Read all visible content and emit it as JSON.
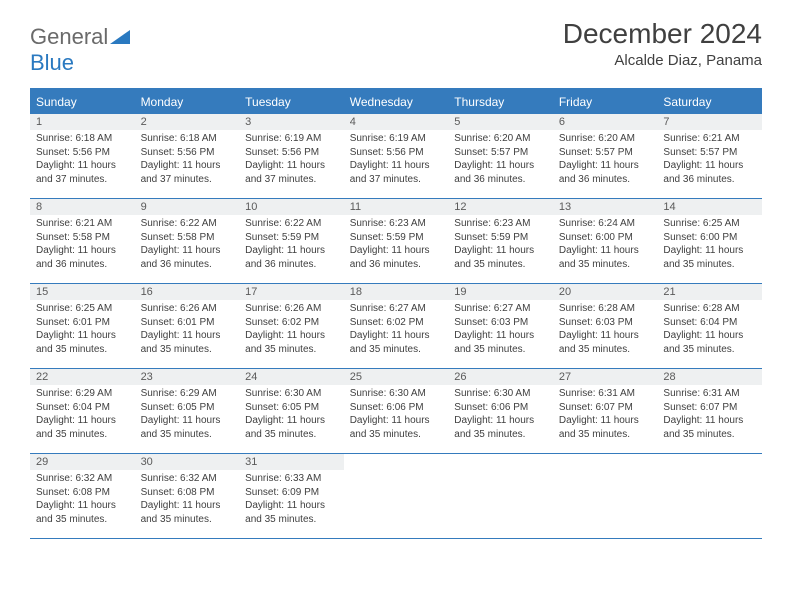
{
  "logo": {
    "text1": "General",
    "text2": "Blue"
  },
  "title": "December 2024",
  "location": "Alcalde Diaz, Panama",
  "day_names": [
    "Sunday",
    "Monday",
    "Tuesday",
    "Wednesday",
    "Thursday",
    "Friday",
    "Saturday"
  ],
  "colors": {
    "header_bg": "#357bbd",
    "header_text": "#ffffff",
    "daynum_bg": "#eef0f1",
    "border": "#357bbd",
    "body_text": "#3f3f3f",
    "logo_gray": "#6a6a6a",
    "logo_blue": "#2a79c0"
  },
  "weeks": [
    [
      {
        "n": "1",
        "sr": "Sunrise: 6:18 AM",
        "ss": "Sunset: 5:56 PM",
        "d1": "Daylight: 11 hours",
        "d2": "and 37 minutes."
      },
      {
        "n": "2",
        "sr": "Sunrise: 6:18 AM",
        "ss": "Sunset: 5:56 PM",
        "d1": "Daylight: 11 hours",
        "d2": "and 37 minutes."
      },
      {
        "n": "3",
        "sr": "Sunrise: 6:19 AM",
        "ss": "Sunset: 5:56 PM",
        "d1": "Daylight: 11 hours",
        "d2": "and 37 minutes."
      },
      {
        "n": "4",
        "sr": "Sunrise: 6:19 AM",
        "ss": "Sunset: 5:56 PM",
        "d1": "Daylight: 11 hours",
        "d2": "and 37 minutes."
      },
      {
        "n": "5",
        "sr": "Sunrise: 6:20 AM",
        "ss": "Sunset: 5:57 PM",
        "d1": "Daylight: 11 hours",
        "d2": "and 36 minutes."
      },
      {
        "n": "6",
        "sr": "Sunrise: 6:20 AM",
        "ss": "Sunset: 5:57 PM",
        "d1": "Daylight: 11 hours",
        "d2": "and 36 minutes."
      },
      {
        "n": "7",
        "sr": "Sunrise: 6:21 AM",
        "ss": "Sunset: 5:57 PM",
        "d1": "Daylight: 11 hours",
        "d2": "and 36 minutes."
      }
    ],
    [
      {
        "n": "8",
        "sr": "Sunrise: 6:21 AM",
        "ss": "Sunset: 5:58 PM",
        "d1": "Daylight: 11 hours",
        "d2": "and 36 minutes."
      },
      {
        "n": "9",
        "sr": "Sunrise: 6:22 AM",
        "ss": "Sunset: 5:58 PM",
        "d1": "Daylight: 11 hours",
        "d2": "and 36 minutes."
      },
      {
        "n": "10",
        "sr": "Sunrise: 6:22 AM",
        "ss": "Sunset: 5:59 PM",
        "d1": "Daylight: 11 hours",
        "d2": "and 36 minutes."
      },
      {
        "n": "11",
        "sr": "Sunrise: 6:23 AM",
        "ss": "Sunset: 5:59 PM",
        "d1": "Daylight: 11 hours",
        "d2": "and 36 minutes."
      },
      {
        "n": "12",
        "sr": "Sunrise: 6:23 AM",
        "ss": "Sunset: 5:59 PM",
        "d1": "Daylight: 11 hours",
        "d2": "and 35 minutes."
      },
      {
        "n": "13",
        "sr": "Sunrise: 6:24 AM",
        "ss": "Sunset: 6:00 PM",
        "d1": "Daylight: 11 hours",
        "d2": "and 35 minutes."
      },
      {
        "n": "14",
        "sr": "Sunrise: 6:25 AM",
        "ss": "Sunset: 6:00 PM",
        "d1": "Daylight: 11 hours",
        "d2": "and 35 minutes."
      }
    ],
    [
      {
        "n": "15",
        "sr": "Sunrise: 6:25 AM",
        "ss": "Sunset: 6:01 PM",
        "d1": "Daylight: 11 hours",
        "d2": "and 35 minutes."
      },
      {
        "n": "16",
        "sr": "Sunrise: 6:26 AM",
        "ss": "Sunset: 6:01 PM",
        "d1": "Daylight: 11 hours",
        "d2": "and 35 minutes."
      },
      {
        "n": "17",
        "sr": "Sunrise: 6:26 AM",
        "ss": "Sunset: 6:02 PM",
        "d1": "Daylight: 11 hours",
        "d2": "and 35 minutes."
      },
      {
        "n": "18",
        "sr": "Sunrise: 6:27 AM",
        "ss": "Sunset: 6:02 PM",
        "d1": "Daylight: 11 hours",
        "d2": "and 35 minutes."
      },
      {
        "n": "19",
        "sr": "Sunrise: 6:27 AM",
        "ss": "Sunset: 6:03 PM",
        "d1": "Daylight: 11 hours",
        "d2": "and 35 minutes."
      },
      {
        "n": "20",
        "sr": "Sunrise: 6:28 AM",
        "ss": "Sunset: 6:03 PM",
        "d1": "Daylight: 11 hours",
        "d2": "and 35 minutes."
      },
      {
        "n": "21",
        "sr": "Sunrise: 6:28 AM",
        "ss": "Sunset: 6:04 PM",
        "d1": "Daylight: 11 hours",
        "d2": "and 35 minutes."
      }
    ],
    [
      {
        "n": "22",
        "sr": "Sunrise: 6:29 AM",
        "ss": "Sunset: 6:04 PM",
        "d1": "Daylight: 11 hours",
        "d2": "and 35 minutes."
      },
      {
        "n": "23",
        "sr": "Sunrise: 6:29 AM",
        "ss": "Sunset: 6:05 PM",
        "d1": "Daylight: 11 hours",
        "d2": "and 35 minutes."
      },
      {
        "n": "24",
        "sr": "Sunrise: 6:30 AM",
        "ss": "Sunset: 6:05 PM",
        "d1": "Daylight: 11 hours",
        "d2": "and 35 minutes."
      },
      {
        "n": "25",
        "sr": "Sunrise: 6:30 AM",
        "ss": "Sunset: 6:06 PM",
        "d1": "Daylight: 11 hours",
        "d2": "and 35 minutes."
      },
      {
        "n": "26",
        "sr": "Sunrise: 6:30 AM",
        "ss": "Sunset: 6:06 PM",
        "d1": "Daylight: 11 hours",
        "d2": "and 35 minutes."
      },
      {
        "n": "27",
        "sr": "Sunrise: 6:31 AM",
        "ss": "Sunset: 6:07 PM",
        "d1": "Daylight: 11 hours",
        "d2": "and 35 minutes."
      },
      {
        "n": "28",
        "sr": "Sunrise: 6:31 AM",
        "ss": "Sunset: 6:07 PM",
        "d1": "Daylight: 11 hours",
        "d2": "and 35 minutes."
      }
    ],
    [
      {
        "n": "29",
        "sr": "Sunrise: 6:32 AM",
        "ss": "Sunset: 6:08 PM",
        "d1": "Daylight: 11 hours",
        "d2": "and 35 minutes."
      },
      {
        "n": "30",
        "sr": "Sunrise: 6:32 AM",
        "ss": "Sunset: 6:08 PM",
        "d1": "Daylight: 11 hours",
        "d2": "and 35 minutes."
      },
      {
        "n": "31",
        "sr": "Sunrise: 6:33 AM",
        "ss": "Sunset: 6:09 PM",
        "d1": "Daylight: 11 hours",
        "d2": "and 35 minutes."
      },
      {
        "empty": true,
        "n": "",
        "sr": "",
        "ss": "",
        "d1": "",
        "d2": ""
      },
      {
        "empty": true,
        "n": "",
        "sr": "",
        "ss": "",
        "d1": "",
        "d2": ""
      },
      {
        "empty": true,
        "n": "",
        "sr": "",
        "ss": "",
        "d1": "",
        "d2": ""
      },
      {
        "empty": true,
        "n": "",
        "sr": "",
        "ss": "",
        "d1": "",
        "d2": ""
      }
    ]
  ]
}
